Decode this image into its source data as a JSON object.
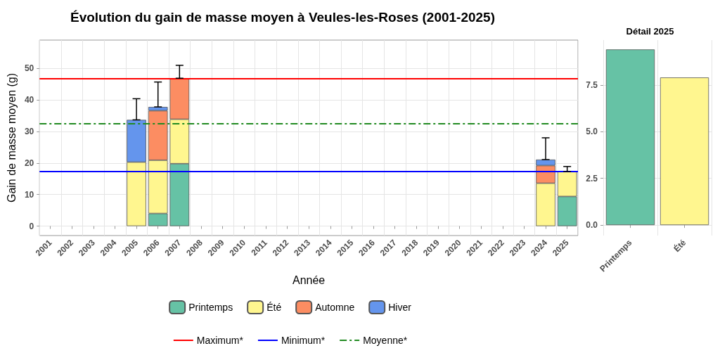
{
  "chart_data": [
    {
      "type": "bar",
      "title": "Évolution du gain de masse moyen à Veules-les-Roses (2001-2025)",
      "xlabel": "Année",
      "ylabel": "Gain de masse moyen (g)",
      "categories": [
        "2001",
        "2002",
        "2003",
        "2004",
        "2005",
        "2006",
        "2007",
        "2008",
        "2009",
        "2010",
        "2011",
        "2012",
        "2013",
        "2014",
        "2015",
        "2016",
        "2017",
        "2018",
        "2019",
        "2020",
        "2021",
        "2022",
        "2023",
        "2024",
        "2025"
      ],
      "stacked": true,
      "series": [
        {
          "name": "Printemps",
          "color": "#66c2a5",
          "values": [
            null,
            null,
            null,
            null,
            null,
            4.0,
            19.8,
            null,
            null,
            null,
            null,
            null,
            null,
            null,
            null,
            null,
            null,
            null,
            null,
            null,
            null,
            null,
            null,
            null,
            9.4
          ]
        },
        {
          "name": "Été",
          "color": "#fff68f",
          "values": [
            null,
            null,
            null,
            null,
            20.3,
            16.9,
            14.1,
            null,
            null,
            null,
            null,
            null,
            null,
            null,
            null,
            null,
            null,
            null,
            null,
            null,
            null,
            null,
            null,
            13.6,
            7.9
          ],
          "errors": [
            null,
            null,
            null,
            null,
            null,
            null,
            null,
            null,
            null,
            null,
            null,
            null,
            null,
            null,
            null,
            null,
            null,
            null,
            null,
            null,
            null,
            null,
            null,
            null,
            [
              17.3,
              18.9
            ]
          ]
        },
        {
          "name": "Automne",
          "color": "#fc8d62",
          "values": [
            null,
            null,
            null,
            null,
            null,
            15.7,
            13.0,
            null,
            null,
            null,
            null,
            null,
            null,
            null,
            null,
            null,
            null,
            null,
            null,
            null,
            null,
            null,
            null,
            5.6,
            null
          ],
          "errors": [
            null,
            null,
            null,
            null,
            null,
            null,
            [
              46.9,
              51.0
            ],
            null,
            null,
            null,
            null,
            null,
            null,
            null,
            null,
            null,
            null,
            null,
            null,
            null,
            null,
            null,
            null,
            null,
            null
          ]
        },
        {
          "name": "Hiver",
          "color": "#6495ed",
          "values": [
            null,
            null,
            null,
            null,
            13.4,
            1.2,
            null,
            null,
            null,
            null,
            null,
            null,
            null,
            null,
            null,
            null,
            null,
            null,
            null,
            null,
            null,
            null,
            null,
            1.9,
            null
          ],
          "errors": [
            null,
            null,
            null,
            null,
            [
              33.7,
              40.4
            ],
            [
              37.8,
              45.7
            ],
            null,
            null,
            null,
            null,
            null,
            null,
            null,
            null,
            null,
            null,
            null,
            null,
            null,
            null,
            null,
            null,
            null,
            [
              21.1,
              28.0
            ],
            null
          ]
        }
      ],
      "ref_lines": [
        {
          "axis": "y",
          "value": 46.9,
          "label": "Maximum*",
          "color": "#ff0000",
          "line_style": "solid"
        },
        {
          "axis": "y",
          "value": 17.3,
          "label": "Minimum*",
          "color": "#0000ff",
          "line_style": "solid"
        },
        {
          "axis": "y",
          "value": 32.6,
          "label": "Moyenne*",
          "color": "#228b22",
          "line_style": "dashed"
        }
      ],
      "ylim": [
        -3,
        59
      ],
      "yticks": [
        0,
        10,
        20,
        30,
        40,
        50
      ],
      "grid": true,
      "legend": "bottom"
    },
    {
      "type": "bar",
      "title": "Détail 2025",
      "categories": [
        "Printemps",
        "Été"
      ],
      "values": [
        9.4,
        7.9
      ],
      "colors": [
        "#66c2a5",
        "#fff68f"
      ],
      "ylim": [
        -0.56,
        9.9
      ],
      "yticks": [
        {
          "value": 0,
          "label": "0.0"
        },
        {
          "value": 2.5,
          "label": "2.5"
        },
        {
          "value": 5,
          "label": "5.0"
        },
        {
          "value": 7.5,
          "label": "7.5"
        }
      ],
      "grid": true
    }
  ]
}
